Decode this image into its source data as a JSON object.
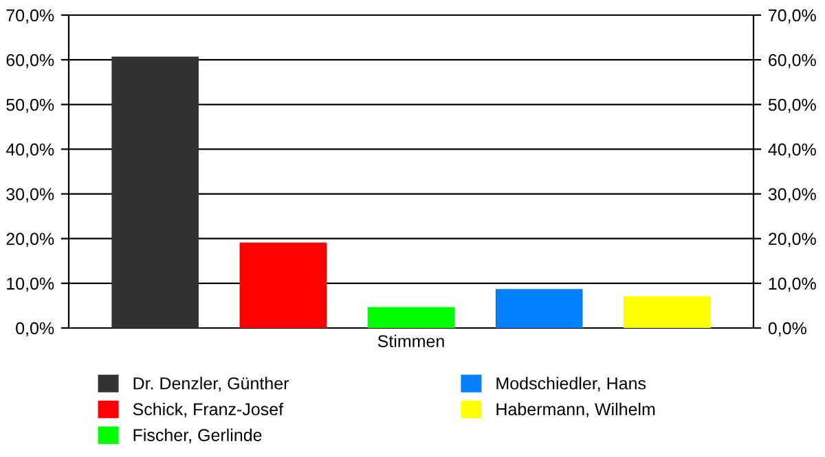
{
  "chart_data": {
    "type": "bar",
    "categories": [
      "Stimmen"
    ],
    "series": [
      {
        "name": "Dr. Denzler, Günther",
        "color": "#333333",
        "values": [
          60.7
        ]
      },
      {
        "name": "Schick, Franz-Josef",
        "color": "#ff0000",
        "values": [
          19.1
        ]
      },
      {
        "name": "Fischer, Gerlinde",
        "color": "#00ff00",
        "values": [
          4.7
        ]
      },
      {
        "name": "Modschiedler, Hans",
        "color": "#0080ff",
        "values": [
          8.7
        ]
      },
      {
        "name": "Habermann, Wilhelm",
        "color": "#ffff00",
        "values": [
          7.1
        ]
      }
    ],
    "ylim": [
      0,
      70
    ],
    "yticks": [
      {
        "value": 0,
        "label": "0,0%"
      },
      {
        "value": 10,
        "label": "10,0%"
      },
      {
        "value": 20,
        "label": "20,0%"
      },
      {
        "value": 30,
        "label": "30,0%"
      },
      {
        "value": 40,
        "label": "40,0%"
      },
      {
        "value": 50,
        "label": "50,0%"
      },
      {
        "value": 60,
        "label": "60,0%"
      },
      {
        "value": 70,
        "label": "70,0%"
      }
    ],
    "grid": "y",
    "legend": "bottom"
  }
}
